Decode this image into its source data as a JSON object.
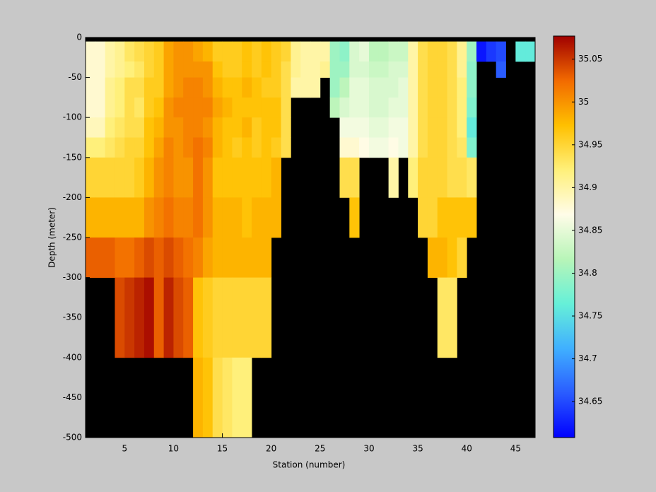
{
  "chart_data": {
    "type": "heatmap",
    "x_label": "Station (number)",
    "y_label": "Depth (meter)",
    "x_edges": [
      1,
      2,
      3,
      4,
      5,
      6,
      7,
      8,
      9,
      10,
      11,
      12,
      13,
      14,
      15,
      16,
      17,
      18,
      19,
      20,
      21,
      22,
      23,
      24,
      25,
      26,
      27,
      28,
      29,
      30,
      31,
      32,
      33,
      34,
      35,
      36,
      37,
      38,
      39,
      40,
      41,
      42,
      43,
      44,
      45,
      46,
      47
    ],
    "y_edges": [
      -5,
      -30,
      -50,
      -75,
      -100,
      -125,
      -150,
      -200,
      -250,
      -300,
      -400,
      -500
    ],
    "xlim": [
      1,
      47
    ],
    "ylim": [
      -500,
      0
    ],
    "xticks": [
      5,
      10,
      15,
      20,
      25,
      30,
      35,
      40,
      45
    ],
    "yticks": [
      0,
      -50,
      -100,
      -150,
      -200,
      -250,
      -300,
      -350,
      -400,
      -450,
      -500
    ],
    "clim": [
      34.608,
      35.077
    ],
    "cticks": [
      34.65,
      34.7,
      34.75,
      34.8,
      34.85,
      34.9,
      34.95,
      35,
      35.05
    ],
    "colormap": [
      "#0000ff",
      "#2a5cff",
      "#40b0ff",
      "#66f0d8",
      "#b8f5b8",
      "#fffce8",
      "#fff07a",
      "#ffc000",
      "#f26a00",
      "#a00000"
    ],
    "nan_color": "#000000",
    "values": [
      [
        34.88,
        34.88,
        34.9,
        34.91,
        34.93,
        34.94,
        34.95,
        34.96,
        34.99,
        35.0,
        35.0,
        34.99,
        34.98,
        34.96,
        34.96,
        34.96,
        34.97,
        34.96,
        34.97,
        34.96,
        34.95,
        34.91,
        34.9,
        34.9,
        34.9,
        34.8,
        34.79,
        34.84,
        34.85,
        34.82,
        34.82,
        34.83,
        34.83,
        34.9,
        34.94,
        34.95,
        34.95,
        34.94,
        34.91,
        34.8,
        34.62,
        34.64,
        34.65,
        null,
        34.76,
        34.76
      ],
      [
        34.88,
        34.88,
        34.9,
        34.91,
        34.92,
        34.93,
        34.95,
        34.96,
        34.99,
        35.0,
        35.0,
        35.0,
        35.0,
        34.97,
        34.96,
        34.96,
        34.97,
        34.96,
        34.97,
        34.96,
        34.94,
        34.91,
        34.9,
        34.9,
        34.91,
        34.8,
        34.8,
        34.84,
        34.84,
        34.83,
        34.83,
        34.84,
        34.84,
        34.9,
        34.94,
        34.95,
        34.95,
        34.94,
        34.91,
        34.79,
        null,
        null,
        34.66,
        null,
        null,
        null
      ],
      [
        34.88,
        34.88,
        34.91,
        34.92,
        34.94,
        34.94,
        34.96,
        34.96,
        34.99,
        35.0,
        35.01,
        35.01,
        35.0,
        34.98,
        34.97,
        34.97,
        34.98,
        34.97,
        34.96,
        34.96,
        34.94,
        34.9,
        34.9,
        34.9,
        null,
        34.8,
        34.82,
        34.85,
        34.85,
        34.84,
        34.84,
        34.84,
        34.85,
        34.9,
        34.94,
        34.95,
        34.95,
        34.94,
        34.92,
        34.79,
        null,
        null,
        null,
        null,
        null,
        null
      ],
      [
        34.88,
        34.88,
        34.91,
        34.92,
        34.94,
        34.93,
        34.96,
        34.97,
        35.0,
        35.01,
        35.01,
        35.01,
        35.01,
        34.99,
        34.98,
        34.97,
        34.97,
        34.97,
        34.97,
        34.97,
        34.94,
        null,
        null,
        null,
        null,
        34.82,
        34.84,
        34.85,
        34.85,
        34.84,
        34.84,
        34.85,
        34.85,
        34.9,
        34.94,
        34.95,
        34.95,
        34.94,
        34.92,
        34.78,
        null,
        null,
        null,
        null,
        null,
        null
      ],
      [
        34.89,
        34.89,
        34.92,
        34.93,
        34.94,
        34.94,
        34.97,
        34.98,
        35.0,
        35.0,
        35.01,
        35.01,
        35.0,
        34.98,
        34.97,
        34.97,
        34.98,
        34.96,
        34.97,
        34.97,
        34.94,
        null,
        null,
        null,
        null,
        null,
        34.86,
        34.86,
        34.86,
        34.85,
        34.85,
        34.86,
        34.86,
        34.9,
        34.94,
        34.95,
        34.95,
        34.94,
        34.92,
        34.76,
        null,
        null,
        null,
        null,
        null,
        null
      ],
      [
        34.92,
        34.92,
        34.93,
        34.94,
        34.95,
        34.95,
        34.97,
        34.99,
        35.01,
        35.0,
        35.01,
        35.02,
        35.01,
        34.98,
        34.97,
        34.96,
        34.97,
        34.96,
        34.97,
        34.96,
        34.94,
        null,
        null,
        null,
        null,
        null,
        34.88,
        34.88,
        34.87,
        34.86,
        34.86,
        34.87,
        34.86,
        34.9,
        34.94,
        34.95,
        34.95,
        34.94,
        34.93,
        34.78,
        null,
        null,
        null,
        null,
        null,
        null
      ],
      [
        34.95,
        34.95,
        34.95,
        34.95,
        34.95,
        34.96,
        34.98,
        35.0,
        35.01,
        35.0,
        35.0,
        35.02,
        35.0,
        34.97,
        34.97,
        34.97,
        34.97,
        34.97,
        34.97,
        34.98,
        null,
        null,
        null,
        null,
        null,
        null,
        34.94,
        34.94,
        null,
        null,
        null,
        34.9,
        null,
        34.92,
        34.95,
        34.95,
        34.95,
        34.94,
        34.94,
        34.93,
        null,
        null,
        null,
        null,
        null,
        null
      ],
      [
        34.98,
        34.98,
        34.98,
        34.98,
        34.98,
        34.98,
        35.0,
        35.01,
        35.02,
        35.01,
        35.01,
        35.02,
        35.0,
        34.98,
        34.98,
        34.98,
        34.97,
        34.98,
        34.98,
        34.98,
        null,
        null,
        null,
        null,
        null,
        null,
        null,
        34.97,
        null,
        null,
        null,
        null,
        null,
        null,
        34.95,
        34.95,
        34.97,
        34.97,
        34.97,
        34.97,
        null,
        null,
        null,
        null,
        null,
        null
      ],
      [
        35.03,
        35.03,
        35.03,
        35.02,
        35.02,
        35.03,
        35.04,
        35.03,
        35.04,
        35.03,
        35.02,
        35.01,
        34.99,
        34.98,
        34.98,
        34.98,
        34.98,
        34.98,
        34.98,
        null,
        null,
        null,
        null,
        null,
        null,
        null,
        null,
        null,
        null,
        null,
        null,
        null,
        null,
        null,
        null,
        34.98,
        34.98,
        34.97,
        34.95,
        null,
        null,
        null,
        null,
        null,
        null,
        null
      ],
      [
        null,
        null,
        null,
        35.04,
        35.05,
        35.06,
        35.07,
        35.03,
        35.06,
        35.04,
        35.03,
        34.97,
        34.96,
        34.95,
        34.95,
        34.95,
        34.95,
        34.95,
        34.95,
        null,
        null,
        null,
        null,
        null,
        null,
        null,
        null,
        null,
        null,
        null,
        null,
        null,
        null,
        null,
        null,
        null,
        34.93,
        34.93,
        null,
        null,
        null,
        null,
        null,
        null,
        null,
        null
      ],
      [
        null,
        null,
        null,
        null,
        null,
        null,
        null,
        null,
        null,
        null,
        null,
        34.98,
        34.97,
        34.94,
        34.93,
        34.92,
        34.92,
        null,
        null,
        null,
        null,
        null,
        null,
        null,
        null,
        null,
        null,
        null,
        null,
        null,
        null,
        null,
        null,
        null,
        null,
        null,
        null,
        null,
        null,
        null,
        null,
        null,
        null,
        null,
        null,
        null
      ]
    ]
  }
}
